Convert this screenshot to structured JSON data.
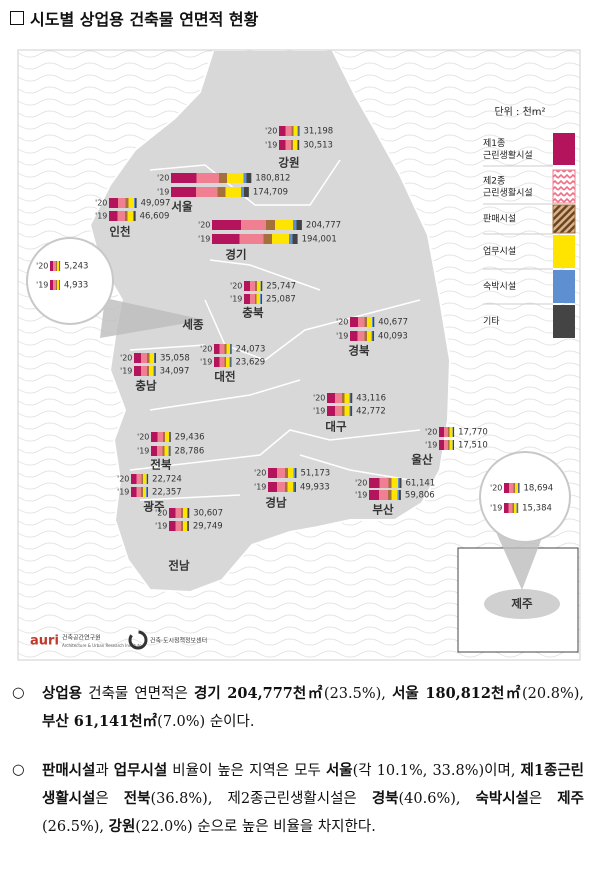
{
  "header": {
    "title": "시도별 상업용 건축물 연면적 현황"
  },
  "map": {
    "unit": "단위 : 천m²",
    "legend": [
      {
        "label": "제1종 근린생활시설",
        "color": "#b3145c"
      },
      {
        "label": "제2종 근린생활시설",
        "color": "#f07f92"
      },
      {
        "label": "판매시설",
        "color": "#a4703c"
      },
      {
        "label": "업무시설",
        "color": "#ffe400"
      },
      {
        "label": "숙박시설",
        "color": "#5e8fd0"
      },
      {
        "label": "기타",
        "color": "#444444"
      }
    ],
    "years": [
      "'20",
      "'19"
    ],
    "regions": [
      {
        "name": "강원",
        "values": [
          31198,
          30513
        ],
        "value_labels": [
          "31,198",
          "30,513"
        ]
      },
      {
        "name": "서울",
        "values": [
          180812,
          174709
        ],
        "value_labels": [
          "180,812",
          "174,709"
        ]
      },
      {
        "name": "인천",
        "values": [
          49097,
          46609
        ],
        "value_labels": [
          "49,097",
          "46,609"
        ]
      },
      {
        "name": "경기",
        "values": [
          204777,
          194001
        ],
        "value_labels": [
          "204,777",
          "194,001"
        ]
      },
      {
        "name": "세종",
        "values": [
          5243,
          4933
        ],
        "value_labels": [
          "5,243",
          "4,933"
        ]
      },
      {
        "name": "충북",
        "values": [
          25747,
          25087
        ],
        "value_labels": [
          "25,747",
          "25,087"
        ]
      },
      {
        "name": "경북",
        "values": [
          40677,
          40093
        ],
        "value_labels": [
          "40,677",
          "40,093"
        ]
      },
      {
        "name": "충남",
        "values": [
          35058,
          34097
        ],
        "value_labels": [
          "35,058",
          "34,097"
        ]
      },
      {
        "name": "대전",
        "values": [
          24073,
          23629
        ],
        "value_labels": [
          "24,073",
          "23,629"
        ]
      },
      {
        "name": "대구",
        "values": [
          43116,
          42772
        ],
        "value_labels": [
          "43,116",
          "42,772"
        ]
      },
      {
        "name": "울산",
        "values": [
          17770,
          17510
        ],
        "value_labels": [
          "17,770",
          "17,510"
        ]
      },
      {
        "name": "전북",
        "values": [
          29436,
          28786
        ],
        "value_labels": [
          "29,436",
          "28,786"
        ]
      },
      {
        "name": "광주",
        "values": [
          22724,
          22357
        ],
        "value_labels": [
          "22,724",
          "22,357"
        ]
      },
      {
        "name": "경남",
        "values": [
          51173,
          49933
        ],
        "value_labels": [
          "51,173",
          "49,933"
        ]
      },
      {
        "name": "부산",
        "values": [
          61141,
          59806
        ],
        "value_labels": [
          "61,141",
          "59,806"
        ]
      },
      {
        "name": "전남",
        "values": [
          30607,
          29749
        ],
        "value_labels": [
          "30,607",
          "29,749"
        ]
      },
      {
        "name": "제주",
        "values": [
          18694,
          15384
        ],
        "value_labels": [
          "18,694",
          "15,384"
        ]
      }
    ]
  },
  "footer": {
    "logo": "auri",
    "institute": "건축공간연구원",
    "institute_en": "Architecture & Urban Research Institute",
    "center": "건축·도시정책정보센터"
  },
  "paragraphs": [
    {
      "bullet": "○",
      "runs": [
        {
          "text": "상업용",
          "bold": true
        },
        {
          "text": " 건축물 연면적은 ",
          "bold": false
        },
        {
          "text": "경기 204,777천㎡",
          "bold": true
        },
        {
          "text": "(23.5%), ",
          "bold": false
        },
        {
          "text": "서울 180,812천㎡",
          "bold": true
        },
        {
          "text": "(20.8%), ",
          "bold": false
        },
        {
          "text": "부산 61,141천㎡",
          "bold": true
        },
        {
          "text": "(7.0%) 순이다.",
          "bold": false
        }
      ]
    },
    {
      "bullet": "○",
      "runs": [
        {
          "text": "판매시설",
          "bold": true
        },
        {
          "text": "과 ",
          "bold": false
        },
        {
          "text": "업무시설",
          "bold": true
        },
        {
          "text": " 비율이 높은 지역은 모두 ",
          "bold": false
        },
        {
          "text": "서울",
          "bold": true
        },
        {
          "text": "(각 10.1%, 33.8%)이며, ",
          "bold": false
        },
        {
          "text": "제1종근린생활시설",
          "bold": true
        },
        {
          "text": "은 ",
          "bold": false
        },
        {
          "text": "전북",
          "bold": true
        },
        {
          "text": "(36.8%), 제2종근린생활시설은 ",
          "bold": false
        },
        {
          "text": "경북",
          "bold": true
        },
        {
          "text": "(40.6%), ",
          "bold": false
        },
        {
          "text": "숙박시설",
          "bold": true
        },
        {
          "text": "은 ",
          "bold": false
        },
        {
          "text": "제주",
          "bold": true
        },
        {
          "text": "(26.5%), ",
          "bold": false
        },
        {
          "text": "강원",
          "bold": true
        },
        {
          "text": "(22.0%) 순으로 높은 비율을 차지한다.",
          "bold": false
        }
      ]
    }
  ]
}
